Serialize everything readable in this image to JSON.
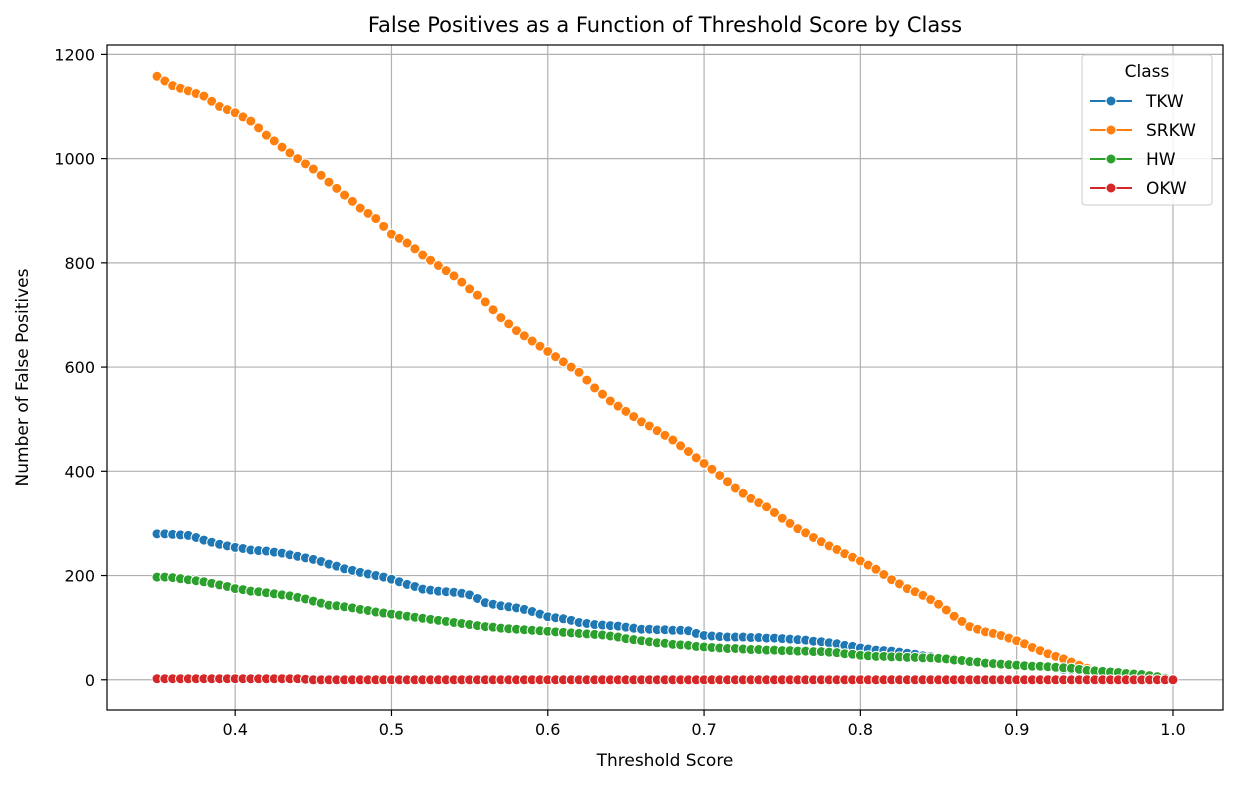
{
  "chart_data": {
    "type": "line",
    "title": "False Positives as a Function of Threshold Score by Class",
    "xlabel": "Threshold Score",
    "ylabel": "Number of False Positives",
    "xlim": [
      0.318,
      1.032
    ],
    "ylim": [
      -58,
      1218
    ],
    "xticks": [
      0.4,
      0.5,
      0.6,
      0.7,
      0.8,
      0.9,
      1.0
    ],
    "xtick_labels": [
      "0.4",
      "0.5",
      "0.6",
      "0.7",
      "0.8",
      "0.9",
      "1.0"
    ],
    "yticks": [
      0,
      200,
      400,
      600,
      800,
      1000,
      1200
    ],
    "ytick_labels": [
      "0",
      "200",
      "400",
      "600",
      "800",
      "1000",
      "1200"
    ],
    "grid": true,
    "markers": true,
    "legend": {
      "title": "Class",
      "placement": "top-right"
    },
    "x": {
      "start": 0.35,
      "stop": 1.0,
      "count": 131
    },
    "series": [
      {
        "name": "TKW",
        "color": "#1f77b4",
        "knots": [
          [
            0.35,
            280
          ],
          [
            0.36,
            279
          ],
          [
            0.37,
            277
          ],
          [
            0.38,
            268
          ],
          [
            0.39,
            260
          ],
          [
            0.4,
            254
          ],
          [
            0.41,
            249
          ],
          [
            0.42,
            247
          ],
          [
            0.43,
            243
          ],
          [
            0.44,
            237
          ],
          [
            0.45,
            231
          ],
          [
            0.46,
            222
          ],
          [
            0.47,
            213
          ],
          [
            0.48,
            206
          ],
          [
            0.49,
            200
          ],
          [
            0.5,
            193
          ],
          [
            0.51,
            183
          ],
          [
            0.52,
            174
          ],
          [
            0.53,
            170
          ],
          [
            0.54,
            168
          ],
          [
            0.55,
            163
          ],
          [
            0.56,
            148
          ],
          [
            0.57,
            142
          ],
          [
            0.58,
            138
          ],
          [
            0.59,
            131
          ],
          [
            0.6,
            121
          ],
          [
            0.61,
            117
          ],
          [
            0.62,
            110
          ],
          [
            0.63,
            106
          ],
          [
            0.64,
            104
          ],
          [
            0.65,
            101
          ],
          [
            0.66,
            97
          ],
          [
            0.67,
            96
          ],
          [
            0.68,
            95
          ],
          [
            0.69,
            94
          ],
          [
            0.7,
            85
          ],
          [
            0.71,
            83
          ],
          [
            0.72,
            82
          ],
          [
            0.73,
            81
          ],
          [
            0.74,
            80
          ],
          [
            0.75,
            79
          ],
          [
            0.76,
            77
          ],
          [
            0.77,
            74
          ],
          [
            0.78,
            71
          ],
          [
            0.79,
            66
          ],
          [
            0.8,
            61
          ],
          [
            0.81,
            57
          ],
          [
            0.82,
            55
          ],
          [
            0.83,
            51
          ],
          [
            0.84,
            46
          ],
          [
            0.85,
            43
          ],
          [
            0.86,
            40
          ],
          [
            0.87,
            36
          ],
          [
            0.88,
            33
          ],
          [
            0.89,
            30
          ],
          [
            0.9,
            28
          ],
          [
            0.91,
            26
          ],
          [
            0.92,
            24
          ],
          [
            0.93,
            20
          ],
          [
            0.94,
            17
          ],
          [
            0.95,
            14
          ],
          [
            0.96,
            11
          ],
          [
            0.97,
            8
          ],
          [
            0.98,
            5
          ],
          [
            0.99,
            3
          ],
          [
            1.0,
            0
          ]
        ]
      },
      {
        "name": "SRKW",
        "color": "#ff7f0e",
        "knots": [
          [
            0.35,
            1158
          ],
          [
            0.36,
            1140
          ],
          [
            0.37,
            1130
          ],
          [
            0.38,
            1120
          ],
          [
            0.39,
            1100
          ],
          [
            0.4,
            1088
          ],
          [
            0.41,
            1072
          ],
          [
            0.42,
            1045
          ],
          [
            0.43,
            1022
          ],
          [
            0.44,
            1000
          ],
          [
            0.45,
            980
          ],
          [
            0.46,
            955
          ],
          [
            0.47,
            930
          ],
          [
            0.48,
            905
          ],
          [
            0.49,
            885
          ],
          [
            0.5,
            855
          ],
          [
            0.51,
            838
          ],
          [
            0.52,
            815
          ],
          [
            0.53,
            795
          ],
          [
            0.54,
            775
          ],
          [
            0.55,
            750
          ],
          [
            0.56,
            725
          ],
          [
            0.57,
            695
          ],
          [
            0.58,
            670
          ],
          [
            0.59,
            650
          ],
          [
            0.6,
            630
          ],
          [
            0.61,
            610
          ],
          [
            0.62,
            590
          ],
          [
            0.63,
            560
          ],
          [
            0.64,
            535
          ],
          [
            0.65,
            515
          ],
          [
            0.66,
            495
          ],
          [
            0.67,
            478
          ],
          [
            0.68,
            460
          ],
          [
            0.69,
            438
          ],
          [
            0.7,
            415
          ],
          [
            0.71,
            392
          ],
          [
            0.72,
            368
          ],
          [
            0.73,
            348
          ],
          [
            0.74,
            332
          ],
          [
            0.75,
            310
          ],
          [
            0.76,
            290
          ],
          [
            0.77,
            273
          ],
          [
            0.78,
            257
          ],
          [
            0.79,
            242
          ],
          [
            0.8,
            228
          ],
          [
            0.81,
            212
          ],
          [
            0.82,
            192
          ],
          [
            0.83,
            175
          ],
          [
            0.84,
            162
          ],
          [
            0.85,
            145
          ],
          [
            0.86,
            122
          ],
          [
            0.87,
            102
          ],
          [
            0.88,
            92
          ],
          [
            0.89,
            85
          ],
          [
            0.9,
            75
          ],
          [
            0.91,
            62
          ],
          [
            0.92,
            50
          ],
          [
            0.93,
            40
          ],
          [
            0.94,
            28
          ],
          [
            0.95,
            17
          ],
          [
            0.96,
            10
          ],
          [
            0.97,
            6
          ],
          [
            0.98,
            3
          ],
          [
            0.99,
            1
          ],
          [
            1.0,
            0
          ]
        ]
      },
      {
        "name": "HW",
        "color": "#2ca02c",
        "knots": [
          [
            0.35,
            197
          ],
          [
            0.36,
            196
          ],
          [
            0.37,
            192
          ],
          [
            0.38,
            188
          ],
          [
            0.39,
            182
          ],
          [
            0.4,
            175
          ],
          [
            0.41,
            170
          ],
          [
            0.42,
            167
          ],
          [
            0.43,
            163
          ],
          [
            0.44,
            158
          ],
          [
            0.45,
            151
          ],
          [
            0.46,
            143
          ],
          [
            0.47,
            140
          ],
          [
            0.48,
            135
          ],
          [
            0.49,
            130
          ],
          [
            0.5,
            126
          ],
          [
            0.51,
            122
          ],
          [
            0.52,
            118
          ],
          [
            0.53,
            114
          ],
          [
            0.54,
            110
          ],
          [
            0.55,
            106
          ],
          [
            0.56,
            102
          ],
          [
            0.57,
            99
          ],
          [
            0.58,
            97
          ],
          [
            0.59,
            95
          ],
          [
            0.6,
            93
          ],
          [
            0.61,
            91
          ],
          [
            0.62,
            89
          ],
          [
            0.63,
            87
          ],
          [
            0.64,
            84
          ],
          [
            0.65,
            79
          ],
          [
            0.66,
            75
          ],
          [
            0.67,
            71
          ],
          [
            0.68,
            68
          ],
          [
            0.69,
            66
          ],
          [
            0.7,
            63
          ],
          [
            0.71,
            61
          ],
          [
            0.72,
            60
          ],
          [
            0.73,
            58
          ],
          [
            0.74,
            57
          ],
          [
            0.75,
            56
          ],
          [
            0.76,
            55
          ],
          [
            0.77,
            54
          ],
          [
            0.78,
            53
          ],
          [
            0.79,
            50
          ],
          [
            0.8,
            47
          ],
          [
            0.81,
            45
          ],
          [
            0.82,
            44
          ],
          [
            0.83,
            43
          ],
          [
            0.84,
            42
          ],
          [
            0.85,
            41
          ],
          [
            0.86,
            38
          ],
          [
            0.87,
            35
          ],
          [
            0.88,
            32
          ],
          [
            0.89,
            30
          ],
          [
            0.9,
            28
          ],
          [
            0.91,
            26
          ],
          [
            0.92,
            25
          ],
          [
            0.93,
            23
          ],
          [
            0.94,
            20
          ],
          [
            0.95,
            17
          ],
          [
            0.96,
            15
          ],
          [
            0.97,
            12
          ],
          [
            0.98,
            10
          ],
          [
            0.99,
            6
          ],
          [
            1.0,
            0
          ]
        ]
      },
      {
        "name": "OKW",
        "color": "#d62728",
        "knots": [
          [
            0.35,
            2
          ],
          [
            0.44,
            2
          ],
          [
            0.45,
            0
          ],
          [
            1.0,
            0
          ]
        ]
      }
    ]
  }
}
